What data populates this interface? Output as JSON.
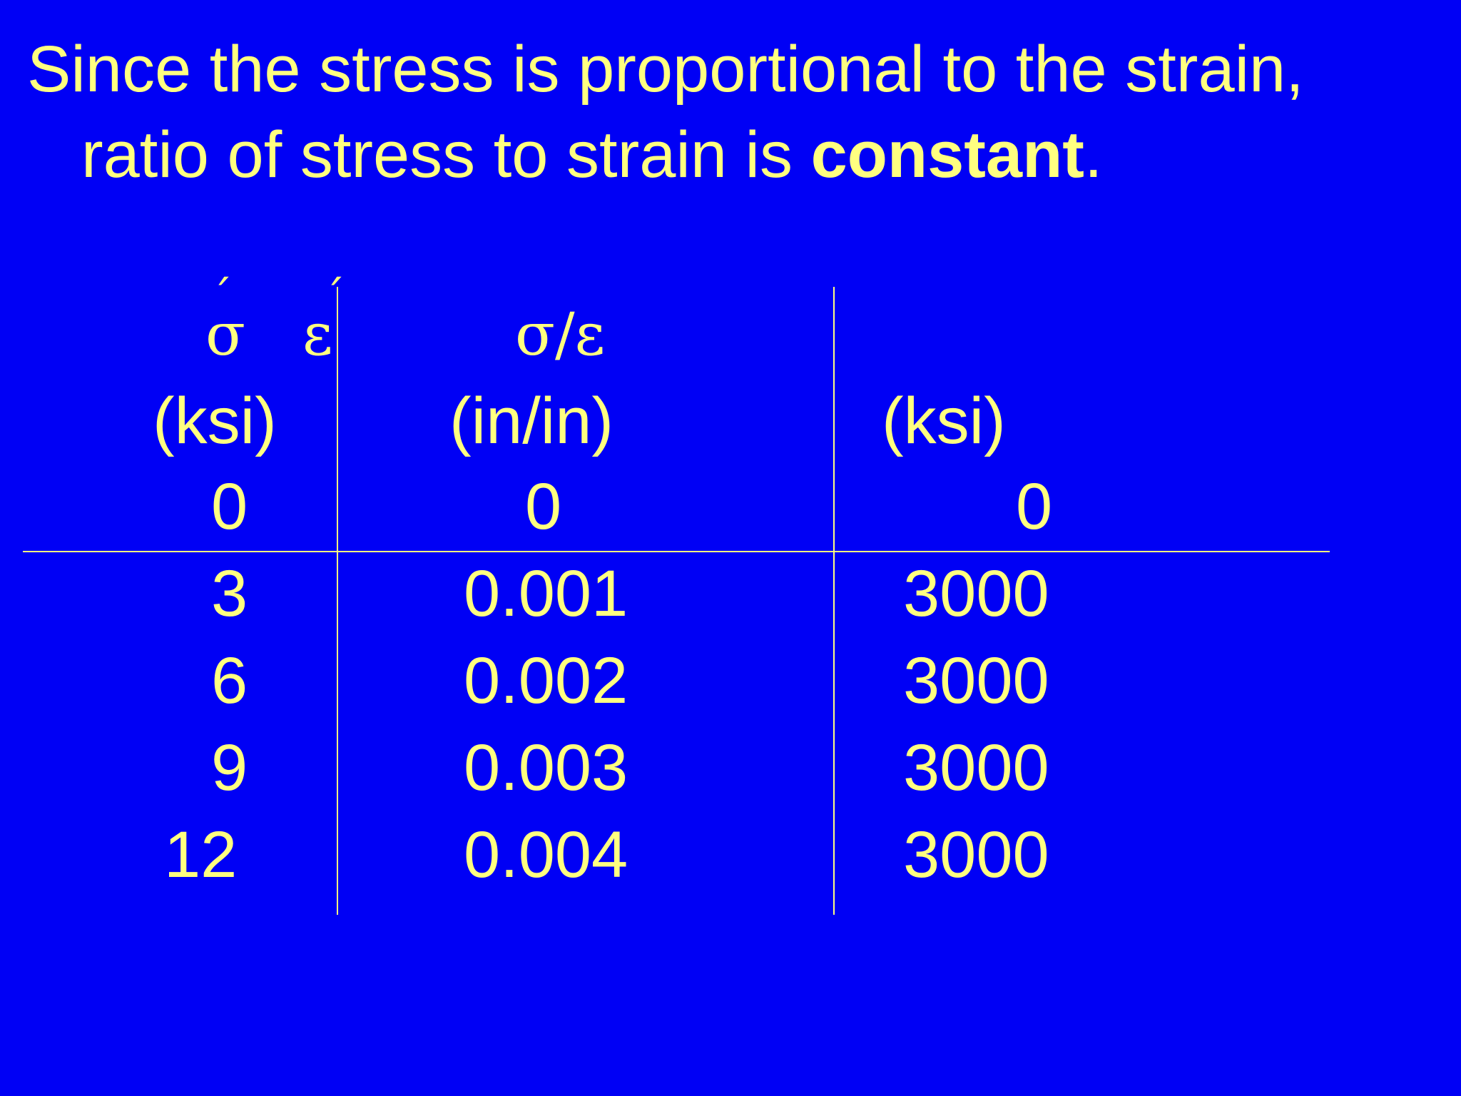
{
  "slide": {
    "title_line1": "Since the stress is proportional to the strain,",
    "title_line2_pre": "ratio of stress to strain is ",
    "title_line2_bold": "constant",
    "title_line2_post": "."
  },
  "table": {
    "headers": {
      "sigma": "σ",
      "epsilon": "ε",
      "ratio": "σ/ε",
      "accent": "´"
    },
    "units": [
      "(ksi)",
      "(in/in)",
      "(ksi)"
    ],
    "rows": [
      [
        "0",
        "0",
        "0"
      ],
      [
        "3",
        "0.001",
        "3000"
      ],
      [
        "6",
        "0.002",
        "3000"
      ],
      [
        "9",
        "0.003",
        "3000"
      ],
      [
        "12",
        "0.004",
        "3000"
      ]
    ]
  },
  "colors": {
    "background": "#0000f5",
    "text": "#ffff80"
  }
}
